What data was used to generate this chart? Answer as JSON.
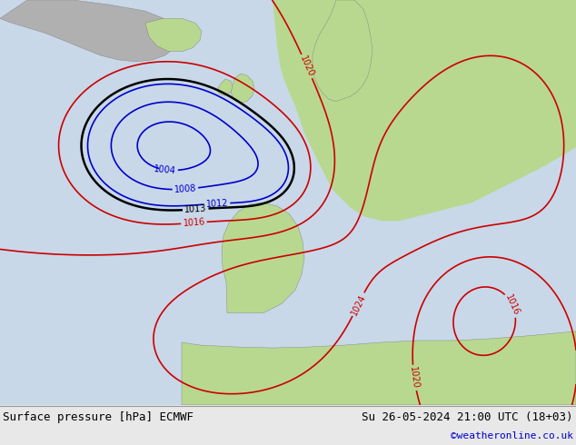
{
  "title_left": "Surface pressure [hPa] ECMWF",
  "title_right": "Su 26-05-2024 21:00 UTC (18+03)",
  "copyright": "©weatheronline.co.uk",
  "bg_ocean": "#d8e8f0",
  "bg_land_green": "#c8e8a0",
  "bg_land_gray": "#c0c0c0",
  "fig_bg": "#f0f0f0",
  "bottom_bar_bg": "#e8e8e8",
  "isobar_low_color": "#0000cc",
  "isobar_high_color": "#cc0000",
  "isobar_1013_color": "#000000",
  "label_fontsize": 7,
  "title_fontsize": 9,
  "copyright_fontsize": 8
}
